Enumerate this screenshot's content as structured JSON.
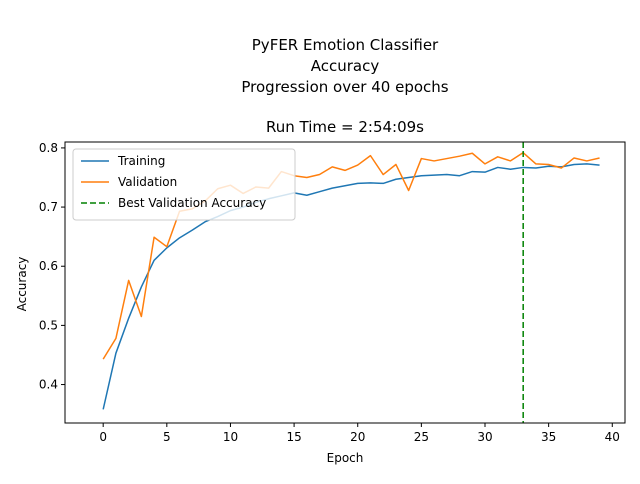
{
  "chart_data": {
    "type": "line",
    "title_lines": [
      "PyFER Emotion Classifier",
      "Accuracy",
      "Progression over 40 epochs",
      "",
      "Run Time = 2:54:09s"
    ],
    "xlabel": "Epoch",
    "ylabel": "Accuracy",
    "xlim": [
      -3,
      41
    ],
    "ylim": [
      0.335,
      0.81
    ],
    "xticks": [
      0,
      5,
      10,
      15,
      20,
      25,
      30,
      35,
      40
    ],
    "xtick_labels": [
      "0",
      "5",
      "10",
      "15",
      "20",
      "25",
      "30",
      "35",
      "40"
    ],
    "yticks": [
      0.4,
      0.5,
      0.6,
      0.7,
      0.8
    ],
    "ytick_labels": [
      "0.4",
      "0.5",
      "0.6",
      "0.7",
      "0.8"
    ],
    "grid": false,
    "legend_position": "top-left",
    "x": [
      0,
      1,
      2,
      3,
      4,
      5,
      6,
      7,
      8,
      9,
      10,
      11,
      12,
      13,
      14,
      15,
      16,
      17,
      18,
      19,
      20,
      21,
      22,
      23,
      24,
      25,
      26,
      27,
      28,
      29,
      30,
      31,
      32,
      33,
      34,
      35,
      36,
      37,
      38,
      39
    ],
    "series": [
      {
        "name": "Training",
        "color": "#1f77b4",
        "style": "solid",
        "values": [
          0.358,
          0.453,
          0.512,
          0.565,
          0.61,
          0.631,
          0.648,
          0.661,
          0.675,
          0.684,
          0.694,
          0.7,
          0.708,
          0.714,
          0.719,
          0.724,
          0.72,
          0.726,
          0.732,
          0.736,
          0.74,
          0.741,
          0.74,
          0.747,
          0.75,
          0.753,
          0.754,
          0.755,
          0.753,
          0.76,
          0.759,
          0.767,
          0.764,
          0.767,
          0.766,
          0.769,
          0.768,
          0.772,
          0.773,
          0.771
        ]
      },
      {
        "name": "Validation",
        "color": "#ff7f0e",
        "style": "solid",
        "values": [
          0.443,
          0.478,
          0.576,
          0.515,
          0.649,
          0.633,
          0.693,
          0.697,
          0.71,
          0.731,
          0.737,
          0.723,
          0.734,
          0.732,
          0.76,
          0.753,
          0.75,
          0.755,
          0.768,
          0.762,
          0.771,
          0.787,
          0.755,
          0.772,
          0.728,
          0.782,
          0.778,
          0.782,
          0.786,
          0.791,
          0.773,
          0.785,
          0.778,
          0.792,
          0.773,
          0.772,
          0.766,
          0.783,
          0.778,
          0.783
        ]
      }
    ],
    "vlines": [
      {
        "name": "Best Validation Accuracy",
        "x": 33,
        "color": "#008000",
        "style": "dashed"
      }
    ]
  }
}
